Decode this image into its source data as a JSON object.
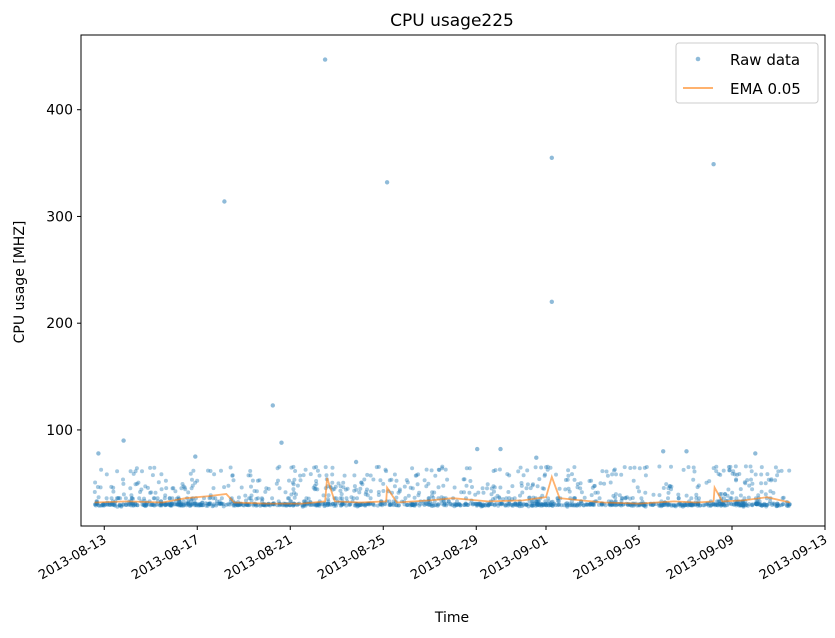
{
  "chart_data": {
    "type": "scatter",
    "title": "CPU usage225",
    "xlabel": "Time",
    "ylabel": "CPU usage [MHZ]",
    "x_scale": "date",
    "xlim": [
      "2013-08-12",
      "2013-09-13"
    ],
    "ylim": [
      10,
      470
    ],
    "x_ticks": [
      "2013-08-13",
      "2013-08-17",
      "2013-08-21",
      "2013-08-25",
      "2013-08-29",
      "2013-09-01",
      "2013-09-05",
      "2013-09-09",
      "2013-09-13"
    ],
    "y_ticks": [
      100,
      200,
      300,
      400
    ],
    "grid": false,
    "legend": {
      "position": "top-right"
    },
    "colors": {
      "raw": "#1f77b4",
      "ema": "#ff7f0e"
    },
    "series": [
      {
        "name": "Raw data",
        "kind": "scatter",
        "note": "Dense raw samples clustered between ~28 and ~65 MHZ over the whole range; listed points are the visible outliers and band levels",
        "bands": [
          29,
          31,
          33,
          36,
          39,
          42,
          45,
          47,
          50,
          53,
          58,
          62,
          65
        ],
        "points": [
          [
            "2013-08-12T18:00",
            78
          ],
          [
            "2013-08-13T20:00",
            90
          ],
          [
            "2013-08-18T04:00",
            314
          ],
          [
            "2013-08-20T06:00",
            123
          ],
          [
            "2013-08-20T15:00",
            88
          ],
          [
            "2013-08-22T12:00",
            447
          ],
          [
            "2013-08-25T04:00",
            332
          ],
          [
            "2013-08-29T01:00",
            82
          ],
          [
            "2013-08-30T01:00",
            82
          ],
          [
            "2013-09-01T06:00",
            355
          ],
          [
            "2013-09-01T06:00",
            220
          ],
          [
            "2013-09-06T01:00",
            80
          ],
          [
            "2013-09-07T01:00",
            80
          ],
          [
            "2013-09-08T05:00",
            349
          ],
          [
            "2013-09-10T00:00",
            78
          ],
          [
            "2013-08-16T22:00",
            75
          ],
          [
            "2013-08-23T20:00",
            70
          ],
          [
            "2013-08-31T14:00",
            74
          ]
        ]
      },
      {
        "name": "EMA 0.05",
        "kind": "line",
        "points": [
          [
            "2013-08-12T14:00",
            32
          ],
          [
            "2013-08-14T00:00",
            33
          ],
          [
            "2013-08-15T12:00",
            32
          ],
          [
            "2013-08-16T12:00",
            36
          ],
          [
            "2013-08-17T12:00",
            38
          ],
          [
            "2013-08-18T06:00",
            40
          ],
          [
            "2013-08-18T14:00",
            32
          ],
          [
            "2013-08-20T00:00",
            31
          ],
          [
            "2013-08-21T12:00",
            31
          ],
          [
            "2013-08-22T12:00",
            33
          ],
          [
            "2013-08-22T14:00",
            55
          ],
          [
            "2013-08-22T22:00",
            33
          ],
          [
            "2013-08-24T00:00",
            32
          ],
          [
            "2013-08-25T03:00",
            33
          ],
          [
            "2013-08-25T04:00",
            46
          ],
          [
            "2013-08-25T14:00",
            32
          ],
          [
            "2013-08-27T00:00",
            34
          ],
          [
            "2013-08-28T00:00",
            36
          ],
          [
            "2013-08-29T12:00",
            33
          ],
          [
            "2013-08-31T00:00",
            34
          ],
          [
            "2013-09-01T00:00",
            37
          ],
          [
            "2013-09-01T06:00",
            56
          ],
          [
            "2013-09-01T14:00",
            36
          ],
          [
            "2013-09-02T12:00",
            34
          ],
          [
            "2013-09-03T12:00",
            32
          ],
          [
            "2013-09-05T00:00",
            31
          ],
          [
            "2013-09-06T12:00",
            33
          ],
          [
            "2013-09-07T12:00",
            32
          ],
          [
            "2013-09-08T05:00",
            33
          ],
          [
            "2013-09-08T06:00",
            46
          ],
          [
            "2013-09-08T14:00",
            33
          ],
          [
            "2013-09-09T12:00",
            34
          ],
          [
            "2013-09-10T12:00",
            37
          ],
          [
            "2013-09-11T12:00",
            32
          ]
        ]
      }
    ]
  }
}
